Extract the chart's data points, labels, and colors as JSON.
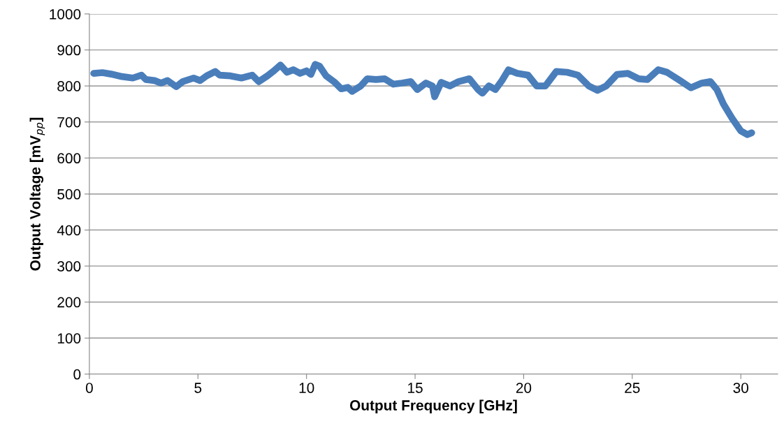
{
  "chart_data": {
    "type": "line",
    "xlabel": "Output Frequency [GHz]",
    "ylabel": "Output Voltage [mV$_{pp}$]",
    "xlim": [
      0,
      31.7
    ],
    "xticks": [
      0,
      5,
      10,
      15,
      20,
      25,
      30
    ],
    "ylim": [
      0,
      1000
    ],
    "yticks": [
      0,
      100,
      200,
      300,
      400,
      500,
      600,
      700,
      800,
      900,
      1000
    ],
    "grid": "y",
    "legend": false,
    "marker": "none",
    "line_style": "solid",
    "series": [
      {
        "color": "#4a7ebb",
        "x": [
          0.2,
          0.6,
          1.0,
          1.5,
          2.0,
          2.4,
          2.6,
          3.0,
          3.3,
          3.6,
          4.0,
          4.3,
          4.8,
          5.1,
          5.4,
          5.8,
          6.0,
          6.5,
          7.0,
          7.5,
          7.8,
          8.2,
          8.5,
          8.8,
          9.1,
          9.4,
          9.7,
          10.0,
          10.2,
          10.4,
          10.6,
          10.9,
          11.3,
          11.6,
          11.9,
          12.1,
          12.5,
          12.8,
          13.2,
          13.6,
          14.0,
          14.4,
          14.8,
          15.1,
          15.5,
          15.8,
          15.9,
          16.2,
          16.6,
          17.0,
          17.5,
          17.9,
          18.1,
          18.4,
          18.7,
          19.0,
          19.3,
          19.7,
          20.2,
          20.6,
          21.0,
          21.5,
          22.0,
          22.5,
          23.0,
          23.4,
          23.8,
          24.3,
          24.8,
          25.3,
          25.7,
          26.2,
          26.6,
          27.2,
          27.7,
          28.2,
          28.6,
          28.9,
          29.2,
          29.6,
          30.0,
          30.3,
          30.5
        ],
        "values": [
          835,
          837,
          833,
          826,
          822,
          830,
          818,
          815,
          808,
          815,
          798,
          812,
          822,
          815,
          828,
          840,
          830,
          828,
          822,
          830,
          812,
          828,
          842,
          858,
          838,
          845,
          835,
          842,
          832,
          860,
          855,
          828,
          810,
          792,
          796,
          785,
          800,
          820,
          818,
          820,
          805,
          808,
          812,
          790,
          808,
          800,
          770,
          810,
          800,
          812,
          820,
          790,
          780,
          800,
          790,
          815,
          845,
          835,
          830,
          800,
          800,
          840,
          838,
          830,
          800,
          788,
          800,
          832,
          835,
          820,
          818,
          845,
          838,
          815,
          795,
          808,
          812,
          790,
          750,
          710,
          675,
          665,
          670
        ]
      }
    ]
  }
}
